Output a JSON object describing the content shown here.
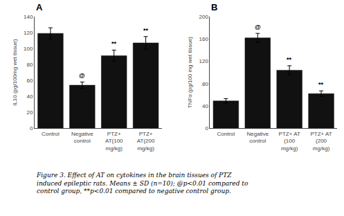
{
  "chart_data": [
    {
      "type": "bar",
      "title": "A",
      "categories": [
        "Control",
        "Negative\ncontrol",
        "PTZ+\nAT(100\nmg/kg)",
        "PTZ+\nAT(200\nmg/kg)"
      ],
      "values": [
        119,
        54,
        91,
        107
      ],
      "errors": [
        7,
        4,
        7,
        8
      ],
      "ylabel": "IL10 (pg/100mg wet tissue)",
      "ylim": [
        0,
        140
      ],
      "yticks": [
        0,
        20,
        40,
        60,
        80,
        100,
        120,
        140
      ],
      "annotations": [
        {
          "category": "Negative\ncontrol",
          "text": "@"
        },
        {
          "category": "PTZ+\nAT(100\nmg/kg)",
          "text": "**"
        },
        {
          "category": "PTZ+\nAT(200\nmg/kg)",
          "text": "**"
        }
      ],
      "color": "#111111",
      "grid": false
    },
    {
      "type": "bar",
      "title": "B",
      "categories": [
        "Control",
        "Negative\ncontrol",
        "PTZ+ AT\n(100\nmg/kg)",
        "PTZ+ AT\n(200\nmg/kg)"
      ],
      "values": [
        49,
        162,
        104,
        62
      ],
      "errors": [
        4,
        8,
        8,
        5
      ],
      "ylabel": "TNFα (pg/100 mg wet tissue)",
      "ylim": [
        0,
        200
      ],
      "yticks": [
        0,
        40,
        80,
        120,
        160,
        200
      ],
      "annotations": [
        {
          "category": "Negative\ncontrol",
          "text": "@"
        },
        {
          "category": "PTZ+ AT\n(100\nmg/kg)",
          "text": "**"
        },
        {
          "category": "PTZ+ AT\n(200\nmg/kg)",
          "text": "**"
        }
      ],
      "color": "#111111",
      "grid": false
    }
  ],
  "caption": [
    "Figure 3. Effect of AT on cytokines in the brain tissues of PTZ",
    "induced epileptic rats. Means ± SD (n=10); @p<0.01 compared to",
    "control group, **p<0.01 compared to negative control group."
  ]
}
